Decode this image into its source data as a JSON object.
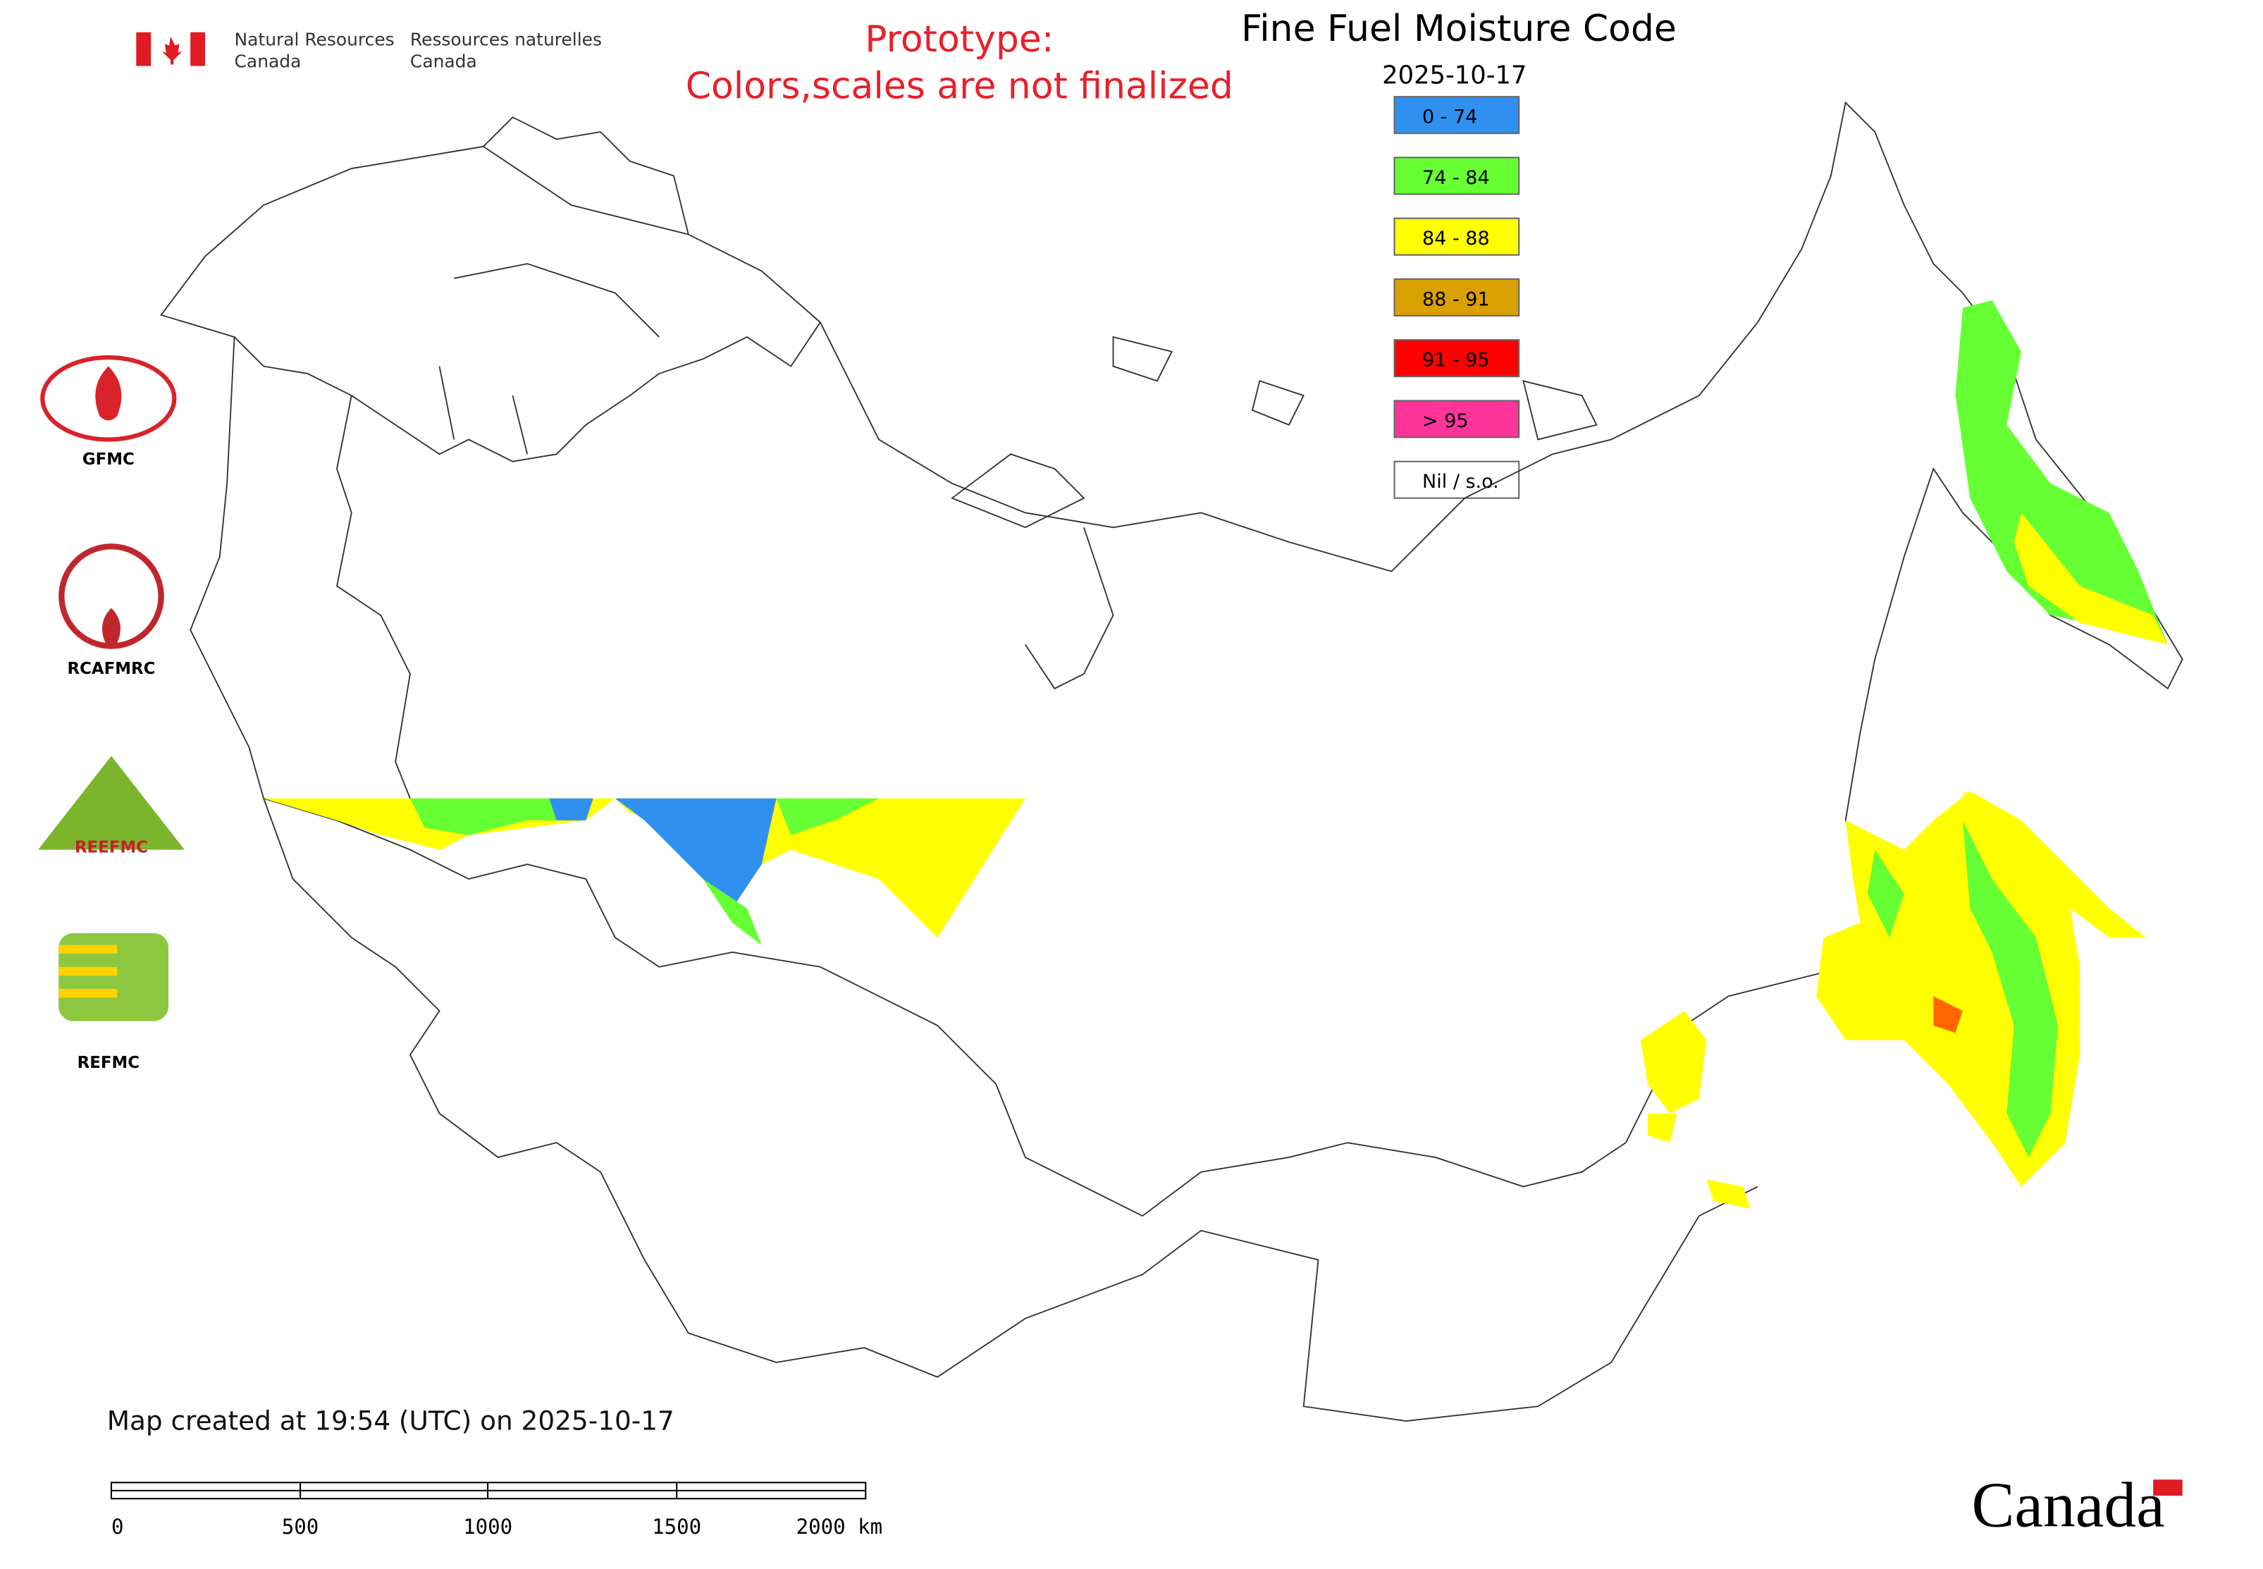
{
  "header": {
    "department_en": [
      "Natural Resources",
      "Canada"
    ],
    "department_fr": [
      "Ressources naturelles",
      "Canada"
    ]
  },
  "notice": [
    "Prototype:",
    "Colors,scales are not finalized"
  ],
  "title": "Fine Fuel Moisture Code",
  "date": "2025-10-17",
  "legend": [
    {
      "label": "0 - 74",
      "color": "#3090f0"
    },
    {
      "label": "74 - 84",
      "color": "#66ff33"
    },
    {
      "label": "84 - 88",
      "color": "#ffff00"
    },
    {
      "label": "88 - 91",
      "color": "#daa000"
    },
    {
      "label": "91 - 95",
      "color": "#ff0000"
    },
    {
      "label": "> 95",
      "color": "#ff3399"
    },
    {
      "label": "Nil / s.o.",
      "color": "#ffffff"
    }
  ],
  "logos": [
    "GFMC",
    "RCAFMRC",
    "REEFMC",
    "REFMC"
  ],
  "footer": "Map created at 19:54 (UTC) on 2025-10-17",
  "scale_bar": {
    "labels": [
      "0",
      "500",
      "1000",
      "1500",
      "2000 km"
    ]
  },
  "wordmark": "Canada"
}
